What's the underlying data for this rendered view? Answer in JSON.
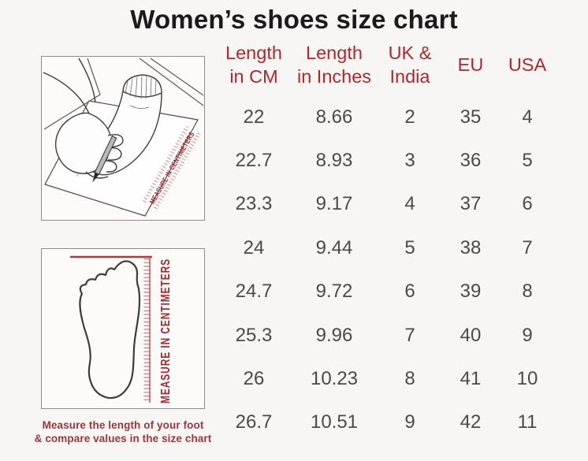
{
  "title": "Women’s shoes size chart",
  "illustrations": {
    "trace_label": "MEASURE IN CENTIMETERS",
    "ruler_label": "MEASURE IN CENTIMETERS",
    "caption_line1": "Measure the length of your foot",
    "caption_line2": "& compare values in the size chart"
  },
  "table": {
    "headers": [
      "Length\nin CM",
      "Length\nin Inches",
      "UK &\nIndia",
      "EU",
      "USA"
    ],
    "rows": [
      [
        "22",
        "8.66",
        "2",
        "35",
        "4"
      ],
      [
        "22.7",
        "8.93",
        "3",
        "36",
        "5"
      ],
      [
        "23.3",
        "9.17",
        "4",
        "37",
        "6"
      ],
      [
        "24",
        "9.44",
        "5",
        "38",
        "7"
      ],
      [
        "24.7",
        "9.72",
        "6",
        "39",
        "8"
      ],
      [
        "25.3",
        "9.96",
        "7",
        "40",
        "9"
      ],
      [
        "26",
        "10.23",
        "8",
        "41",
        "10"
      ],
      [
        "26.7",
        "10.51",
        "9",
        "42",
        "11"
      ]
    ]
  },
  "chart_data": {
    "type": "table",
    "title": "Women’s shoes size chart",
    "columns": [
      "Length in CM",
      "Length in Inches",
      "UK & India",
      "EU",
      "USA"
    ],
    "rows": [
      [
        22,
        8.66,
        2,
        35,
        4
      ],
      [
        22.7,
        8.93,
        3,
        36,
        5
      ],
      [
        23.3,
        9.17,
        4,
        37,
        6
      ],
      [
        24,
        9.44,
        5,
        38,
        7
      ],
      [
        24.7,
        9.72,
        6,
        39,
        8
      ],
      [
        25.3,
        9.96,
        7,
        40,
        9
      ],
      [
        26,
        10.23,
        8,
        41,
        10
      ],
      [
        26.7,
        10.51,
        9,
        42,
        11
      ]
    ]
  },
  "colors": {
    "background": "#f7f6f4",
    "title_text": "#1b1b1d",
    "accent_red": "#ae282e",
    "caption_red": "#9d353c",
    "ruler_pink": "#dc9ba0",
    "body_text": "#4a4a4a",
    "box_border": "#8d8d8d"
  }
}
